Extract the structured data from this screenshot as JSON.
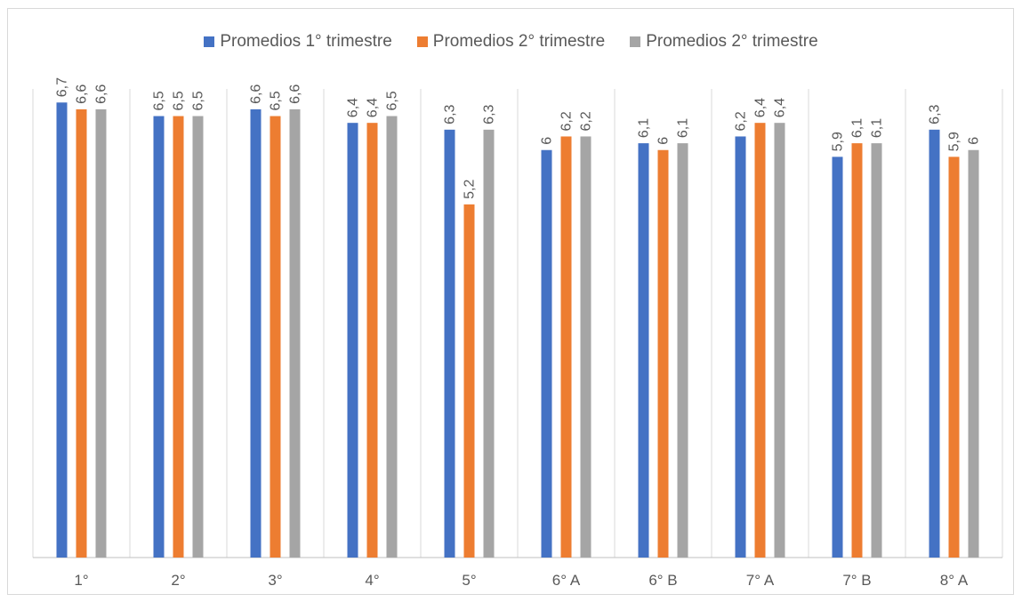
{
  "chart_data": {
    "type": "bar",
    "title": "",
    "xlabel": "",
    "ylabel": "",
    "ylim": [
      0,
      6.9
    ],
    "grid": "vertical-category-separators",
    "legend_position": "top-center",
    "categories": [
      "1°",
      "2°",
      "3°",
      "4°",
      "5°",
      "6° A",
      "6° B",
      "7° A",
      "7° B",
      "8° A"
    ],
    "series": [
      {
        "name": "Promedios 1° trimestre",
        "color": "#4472c4",
        "values": [
          6.7,
          6.5,
          6.6,
          6.4,
          6.3,
          6.0,
          6.1,
          6.2,
          5.9,
          6.3
        ],
        "labels": [
          "6,7",
          "6,5",
          "6,6",
          "6,4",
          "6,3",
          "6",
          "6,1",
          "6,2",
          "5,9",
          "6,3"
        ]
      },
      {
        "name": "Promedios 2° trimestre",
        "color": "#ed7d31",
        "values": [
          6.6,
          6.5,
          6.5,
          6.4,
          5.2,
          6.2,
          6.0,
          6.4,
          6.1,
          5.9
        ],
        "labels": [
          "6,6",
          "6,5",
          "6,5",
          "6,4",
          "5,2",
          "6,2",
          "6",
          "6,4",
          "6,1",
          "5,9"
        ]
      },
      {
        "name": "Promedios 2° trimestre",
        "color": "#a5a5a5",
        "values": [
          6.6,
          6.5,
          6.6,
          6.5,
          6.3,
          6.2,
          6.1,
          6.4,
          6.1,
          6.0
        ],
        "labels": [
          "6,6",
          "6,5",
          "6,6",
          "6,5",
          "6,3",
          "6,2",
          "6,1",
          "6,4",
          "6,1",
          "6"
        ]
      }
    ]
  }
}
